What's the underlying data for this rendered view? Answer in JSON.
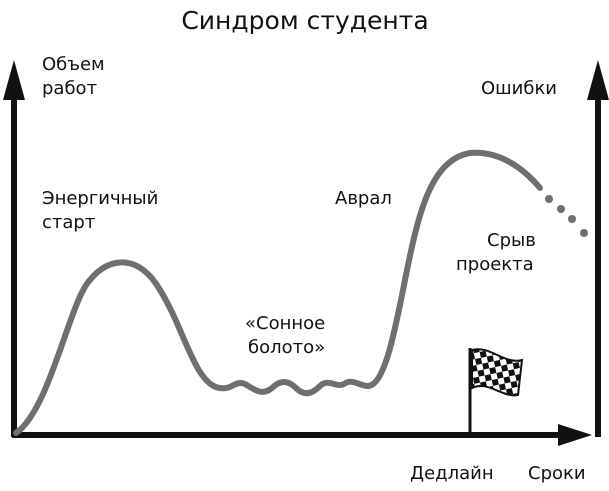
{
  "title": "Синдром студента",
  "labels": {
    "y_axis": [
      "Объем",
      "работ"
    ],
    "errors": [
      "Ошибки"
    ],
    "energetic_start": [
      "Энергичный",
      "старт"
    ],
    "rush": [
      "Аврал"
    ],
    "failure": [
      "Срыв",
      "проекта"
    ],
    "swamp": [
      "«Сонное",
      "болото»"
    ],
    "deadline": [
      "Дедлайн"
    ],
    "x_axis": [
      "Сроки"
    ]
  }
}
